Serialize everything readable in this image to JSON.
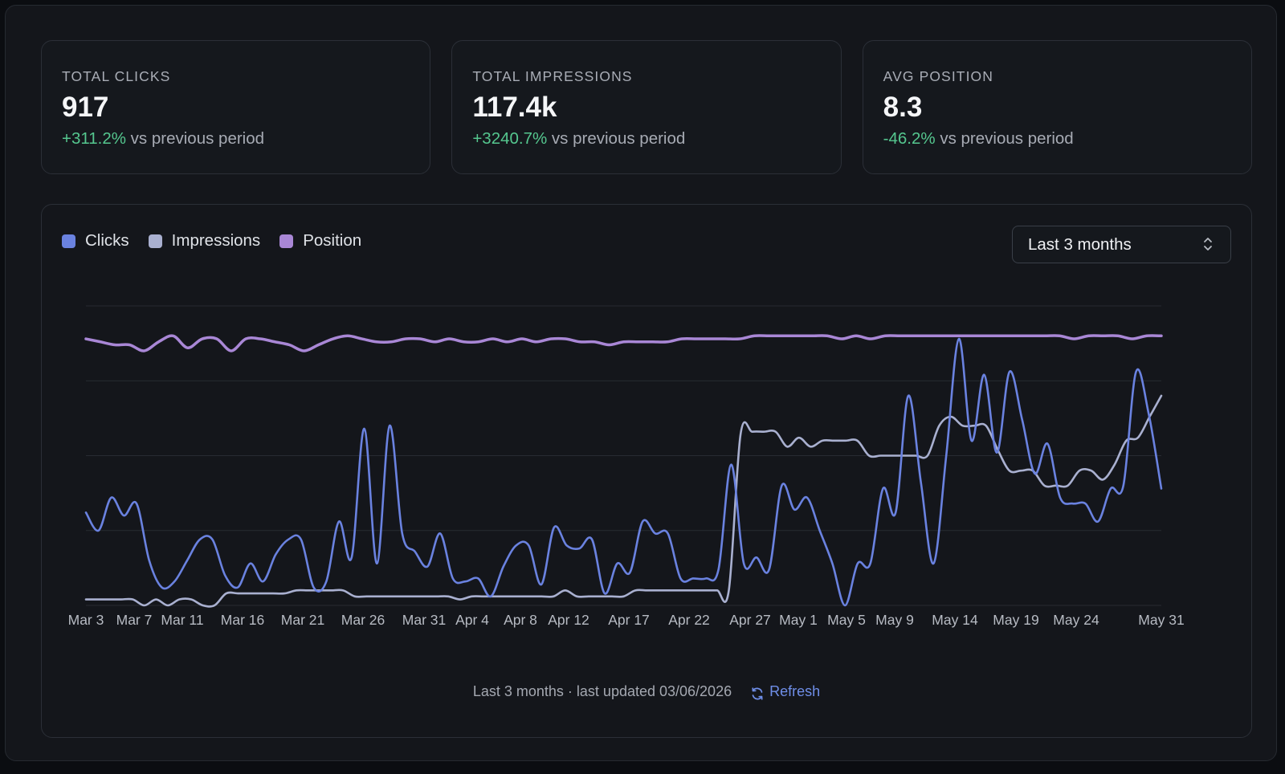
{
  "stats": [
    {
      "label": "TOTAL CLICKS",
      "value": "917",
      "delta": "+311.2%",
      "suffix": " vs previous period"
    },
    {
      "label": "TOTAL IMPRESSIONS",
      "value": "117.4k",
      "delta": "+3240.7%",
      "suffix": " vs previous period"
    },
    {
      "label": "AVG POSITION",
      "value": "8.3",
      "delta": "-46.2%",
      "suffix": " vs previous period"
    }
  ],
  "legend": [
    {
      "label": "Clicks",
      "color": "#6a82e0"
    },
    {
      "label": "Impressions",
      "color": "#a9b0d0"
    },
    {
      "label": "Position",
      "color": "#a987d6"
    }
  ],
  "range_select": {
    "value": "Last 3 months",
    "icon": "chevron-up-down-icon"
  },
  "footer": {
    "text": "Last 3 months · last updated 03/06/2026",
    "refresh_label": "Refresh",
    "refresh_icon": "refresh-icon"
  },
  "chart_data": {
    "type": "line",
    "x_tick_labels": [
      "Mar 3",
      "Mar 7",
      "Mar 11",
      "Mar 16",
      "Mar 21",
      "Mar 26",
      "Mar 31",
      "Apr 4",
      "Apr 8",
      "Apr 12",
      "Apr 17",
      "Apr 22",
      "Apr 27",
      "May 1",
      "May 5",
      "May 9",
      "May 14",
      "May 19",
      "May 24",
      "May 31"
    ],
    "x_range": [
      "Mar 3",
      "May 31"
    ],
    "y_axis_labels_shown": false,
    "grid": "horizontal",
    "gridline_count": 5,
    "normalized_scale": [
      0,
      100
    ],
    "series": [
      {
        "name": "Clicks",
        "color": "#6a82e0",
        "values": [
          31,
          25,
          36,
          30,
          34,
          15,
          6,
          8,
          15,
          22,
          22,
          10,
          6,
          14,
          8,
          17,
          22,
          22,
          6,
          8,
          28,
          16,
          59,
          14,
          60,
          24,
          18,
          13,
          24,
          9,
          8,
          9,
          3,
          13,
          20,
          20,
          7,
          26,
          20,
          19,
          22,
          4,
          14,
          11,
          28,
          24,
          24,
          9,
          9,
          9,
          12,
          47,
          14,
          16,
          12,
          40,
          32,
          36,
          25,
          14,
          0,
          14,
          14,
          39,
          31,
          70,
          41,
          14,
          50,
          89,
          55,
          77,
          51,
          78,
          62,
          44,
          54,
          36,
          34,
          34,
          28,
          39,
          40,
          78,
          64,
          39
        ]
      },
      {
        "name": "Impressions",
        "color": "#a9b0d0",
        "values": [
          2,
          2,
          2,
          2,
          2,
          0,
          2,
          0,
          2,
          2,
          0,
          0,
          4,
          4,
          4,
          4,
          4,
          4,
          5,
          5,
          5,
          5,
          5,
          3,
          3,
          3,
          3,
          3,
          3,
          3,
          3,
          3,
          2,
          3,
          3,
          3,
          3,
          3,
          3,
          3,
          3,
          5,
          3,
          3,
          3,
          3,
          3,
          5,
          5,
          5,
          5,
          5,
          5,
          5,
          5,
          5,
          57,
          58,
          58,
          58,
          53,
          56,
          53,
          55,
          55,
          55,
          55,
          50,
          50,
          50,
          50,
          50,
          50,
          60,
          63,
          60,
          60,
          60,
          52,
          45,
          45,
          45,
          40,
          40,
          40,
          45,
          45,
          42,
          47,
          55,
          56,
          63,
          70
        ]
      },
      {
        "name": "Position",
        "color": "#a987d6",
        "values": [
          89,
          88,
          87,
          87,
          85,
          88,
          90,
          86,
          89,
          89,
          85,
          89,
          89,
          88,
          87,
          85,
          87,
          89,
          90,
          89,
          88,
          88,
          89,
          89,
          88,
          89,
          88,
          88,
          89,
          88,
          89,
          88,
          89,
          89,
          88,
          88,
          87,
          88,
          88,
          88,
          88,
          89,
          89,
          89,
          89,
          89,
          90,
          90,
          90,
          90,
          90,
          90,
          89,
          90,
          89,
          90,
          90,
          90,
          90,
          90,
          90,
          90,
          90,
          90,
          90,
          90,
          90,
          90,
          89,
          90,
          90,
          90,
          89,
          90,
          90
        ]
      }
    ]
  }
}
